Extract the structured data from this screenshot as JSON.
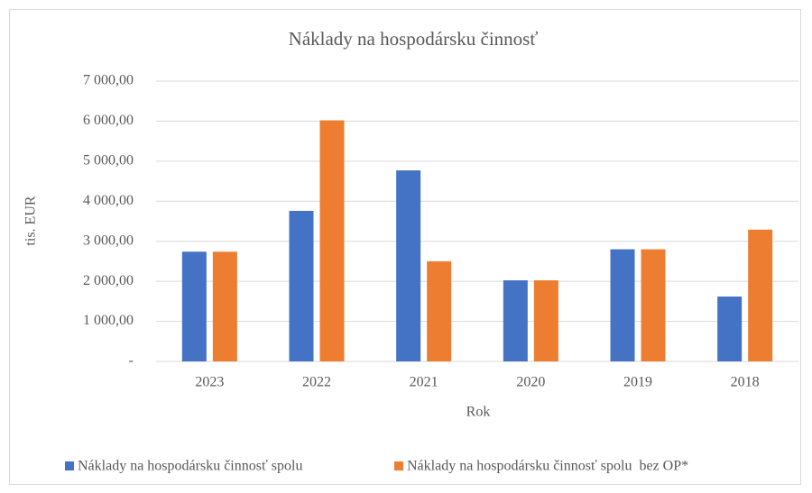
{
  "chart_data": {
    "type": "bar",
    "title": "Náklady na hospodársku činnosť",
    "x_label": "Rok",
    "y_label": "tis. EUR",
    "categories": [
      "2023",
      "2022",
      "2021",
      "2020",
      "2019",
      "2018"
    ],
    "series": [
      {
        "name": "Náklady na hospodársku činnosť spolu",
        "color": "#4472c4",
        "values": [
          2740,
          3760,
          4770,
          2025,
          2800,
          1620
        ]
      },
      {
        "name": "Náklady na hospodársku činnosť spolu  bez OP*",
        "color": "#ed7d31",
        "values": [
          2740,
          6020,
          2500,
          2025,
          2800,
          3290
        ]
      }
    ],
    "ylim": [
      0,
      7000
    ],
    "yticks": [
      {
        "value": 0,
        "label": "-"
      },
      {
        "value": 1000,
        "label": "1 000,00"
      },
      {
        "value": 2000,
        "label": "2 000,00"
      },
      {
        "value": 3000,
        "label": "3 000,00"
      },
      {
        "value": 4000,
        "label": "4 000,00"
      },
      {
        "value": 5000,
        "label": "5 000,00"
      },
      {
        "value": 6000,
        "label": "6 000,00"
      },
      {
        "value": 7000,
        "label": "7 000,00"
      }
    ],
    "grid": true,
    "legend": "bottom"
  }
}
